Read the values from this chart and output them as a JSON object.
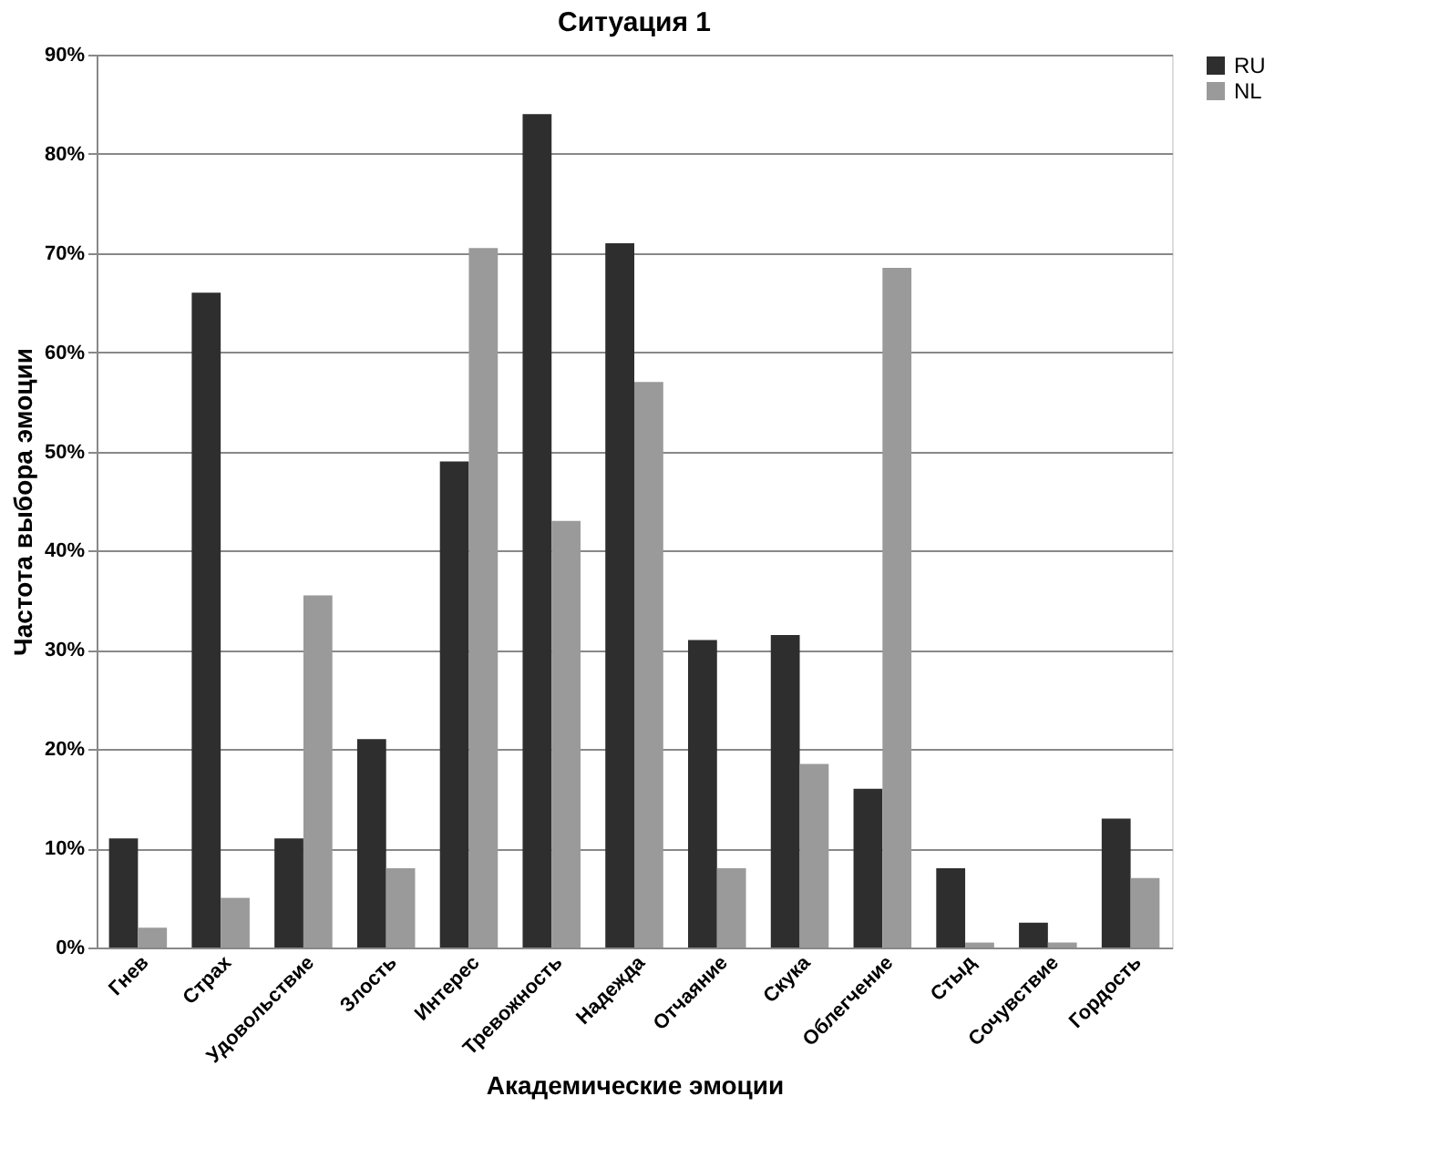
{
  "chart_data": {
    "type": "bar",
    "title": "Ситуация 1",
    "xlabel": "Академические эмоции",
    "ylabel": "Частота выбора эмоции",
    "categories": [
      "Гнев",
      "Страх",
      "Удовольствие",
      "Злость",
      "Интерес",
      "Тревожность",
      "Надежда",
      "Отчаяние",
      "Скука",
      "Облегчение",
      "Стыд",
      "Сочувствие",
      "Гордость"
    ],
    "series": [
      {
        "name": "RU",
        "color": "#2e2e2e",
        "values": [
          11,
          66,
          11,
          21,
          49,
          84,
          71,
          31,
          31.5,
          16,
          8,
          2.5,
          13
        ]
      },
      {
        "name": "NL",
        "color": "#9a9a9a",
        "values": [
          2,
          5,
          35.5,
          8,
          70.5,
          43,
          57,
          8,
          18.5,
          68.5,
          0.5,
          0.5,
          7
        ]
      }
    ],
    "ylim": [
      0,
      90
    ],
    "yticks": [
      {
        "value": 0,
        "label": "0%"
      },
      {
        "value": 10,
        "label": "10%"
      },
      {
        "value": 20,
        "label": "20%"
      },
      {
        "value": 30,
        "label": "30%"
      },
      {
        "value": 40,
        "label": "40%"
      },
      {
        "value": 50,
        "label": "50%"
      },
      {
        "value": 60,
        "label": "60%"
      },
      {
        "value": 70,
        "label": "70%"
      },
      {
        "value": 80,
        "label": "80%"
      },
      {
        "value": 90,
        "label": "90%"
      }
    ],
    "grid": "y",
    "legend": "right"
  }
}
